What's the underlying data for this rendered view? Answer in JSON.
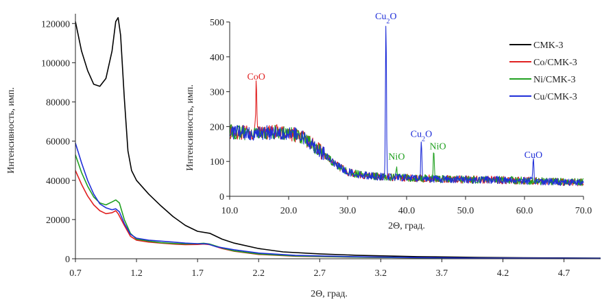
{
  "chart_data": [
    {
      "id": "main",
      "type": "line",
      "xlabel": "2Θ, град.",
      "ylabel": "Интенсивность, имп.",
      "xlim": [
        0.7,
        5.0
      ],
      "ylim": [
        0,
        125000
      ],
      "xticks": [
        "0.7",
        "1.2",
        "1.7",
        "2.2",
        "2.7",
        "3.2",
        "3.7",
        "4.2",
        "4.7"
      ],
      "yticks": [
        "0",
        "20000",
        "40000",
        "60000",
        "80000",
        "100000",
        "120000"
      ],
      "grid": false,
      "series": [
        {
          "name": "CMK-3",
          "color": "#000000",
          "points": [
            [
              0.7,
              121000
            ],
            [
              0.75,
              106000
            ],
            [
              0.8,
              96000
            ],
            [
              0.85,
              89000
            ],
            [
              0.9,
              88000
            ],
            [
              0.95,
              92000
            ],
            [
              1.0,
              106000
            ],
            [
              1.03,
              121000
            ],
            [
              1.05,
              123000
            ],
            [
              1.07,
              114000
            ],
            [
              1.1,
              82000
            ],
            [
              1.13,
              55000
            ],
            [
              1.16,
              45000
            ],
            [
              1.2,
              40000
            ],
            [
              1.3,
              33000
            ],
            [
              1.4,
              27000
            ],
            [
              1.5,
              21500
            ],
            [
              1.6,
              17000
            ],
            [
              1.7,
              14000
            ],
            [
              1.8,
              13000
            ],
            [
              1.9,
              10000
            ],
            [
              2.0,
              8000
            ],
            [
              2.2,
              5200
            ],
            [
              2.4,
              3500
            ],
            [
              2.7,
              2500
            ],
            [
              3.0,
              1800
            ],
            [
              3.5,
              1100
            ],
            [
              4.0,
              700
            ],
            [
              4.5,
              450
            ],
            [
              5.0,
              300
            ]
          ]
        },
        {
          "name": "Co/CMK-3",
          "color": "#e02020",
          "points": [
            [
              0.7,
              45000
            ],
            [
              0.75,
              38000
            ],
            [
              0.8,
              32000
            ],
            [
              0.85,
              27500
            ],
            [
              0.9,
              24500
            ],
            [
              0.95,
              23000
            ],
            [
              1.0,
              23500
            ],
            [
              1.03,
              24500
            ],
            [
              1.05,
              23000
            ],
            [
              1.1,
              17000
            ],
            [
              1.15,
              11500
            ],
            [
              1.2,
              9500
            ],
            [
              1.3,
              8500
            ],
            [
              1.4,
              8000
            ],
            [
              1.5,
              7500
            ],
            [
              1.6,
              7200
            ],
            [
              1.7,
              7300
            ],
            [
              1.75,
              7500
            ],
            [
              1.8,
              7200
            ],
            [
              1.9,
              5200
            ],
            [
              2.0,
              3800
            ],
            [
              2.2,
              2200
            ],
            [
              2.5,
              1300
            ],
            [
              3.0,
              800
            ],
            [
              3.5,
              500
            ],
            [
              4.0,
              300
            ],
            [
              5.0,
              200
            ]
          ]
        },
        {
          "name": "Ni/CMK-3",
          "color": "#20a020",
          "points": [
            [
              0.7,
              53000
            ],
            [
              0.75,
              44000
            ],
            [
              0.8,
              37000
            ],
            [
              0.85,
              31500
            ],
            [
              0.9,
              28500
            ],
            [
              0.95,
              27500
            ],
            [
              1.0,
              29000
            ],
            [
              1.03,
              30000
            ],
            [
              1.06,
              28500
            ],
            [
              1.1,
              20000
            ],
            [
              1.15,
              13000
            ],
            [
              1.2,
              10000
            ],
            [
              1.3,
              9000
            ],
            [
              1.4,
              8200
            ],
            [
              1.5,
              7800
            ],
            [
              1.6,
              7600
            ],
            [
              1.7,
              7700
            ],
            [
              1.75,
              7900
            ],
            [
              1.8,
              7500
            ],
            [
              1.9,
              5500
            ],
            [
              2.0,
              4000
            ],
            [
              2.2,
              2400
            ],
            [
              2.5,
              1400
            ],
            [
              3.0,
              800
            ],
            [
              3.5,
              500
            ],
            [
              4.0,
              300
            ],
            [
              5.0,
              200
            ]
          ]
        },
        {
          "name": "Cu/CMK-3",
          "color": "#1f2ed8",
          "points": [
            [
              0.7,
              59000
            ],
            [
              0.75,
              49000
            ],
            [
              0.8,
              40000
            ],
            [
              0.85,
              33000
            ],
            [
              0.9,
              28000
            ],
            [
              0.95,
              26000
            ],
            [
              1.0,
              25000
            ],
            [
              1.03,
              25500
            ],
            [
              1.06,
              24000
            ],
            [
              1.1,
              18000
            ],
            [
              1.15,
              12500
            ],
            [
              1.2,
              10500
            ],
            [
              1.3,
              9500
            ],
            [
              1.4,
              9000
            ],
            [
              1.5,
              8500
            ],
            [
              1.6,
              8000
            ],
            [
              1.7,
              7700
            ],
            [
              1.78,
              7600
            ],
            [
              1.85,
              6200
            ],
            [
              2.0,
              4600
            ],
            [
              2.2,
              2900
            ],
            [
              2.5,
              1700
            ],
            [
              3.0,
              1000
            ],
            [
              3.5,
              600
            ],
            [
              4.0,
              350
            ],
            [
              5.0,
              200
            ]
          ]
        }
      ]
    },
    {
      "id": "inset",
      "type": "line",
      "xlabel": "2Θ, град.",
      "ylabel": "Интенсивность, имп.",
      "xlim": [
        10.0,
        70.0
      ],
      "ylim": [
        0,
        500
      ],
      "xticks": [
        "10.0",
        "20.0",
        "30.0",
        "40.0",
        "50.0",
        "60.0",
        "70.0"
      ],
      "yticks": [
        "0",
        "100",
        "200",
        "300",
        "400",
        "500"
      ],
      "grid": false,
      "baseline": [
        [
          10,
          185
        ],
        [
          15,
          180
        ],
        [
          18,
          185
        ],
        [
          20,
          182
        ],
        [
          22,
          172
        ],
        [
          24,
          150
        ],
        [
          26,
          120
        ],
        [
          28,
          90
        ],
        [
          30,
          70
        ],
        [
          32,
          62
        ],
        [
          35,
          57
        ],
        [
          40,
          53
        ],
        [
          45,
          50
        ],
        [
          50,
          48
        ],
        [
          55,
          47
        ],
        [
          60,
          45
        ],
        [
          65,
          42
        ],
        [
          70,
          40
        ]
      ],
      "series": [
        {
          "name": "Co/CMK-3",
          "color": "#e02020",
          "peaks": [
            [
              14.5,
              325
            ]
          ]
        },
        {
          "name": "Ni/CMK-3",
          "color": "#20a020",
          "peaks": [
            [
              38.3,
              95
            ],
            [
              44.6,
              125
            ]
          ]
        },
        {
          "name": "Cu/CMK-3",
          "color": "#1f2ed8",
          "peaks": [
            [
              36.5,
              500
            ],
            [
              42.5,
              160
            ],
            [
              61.5,
              100
            ]
          ]
        }
      ],
      "annotations": [
        {
          "text": "CoO",
          "x": 14.5,
          "y": 335,
          "color": "#e02020"
        },
        {
          "text": "Cu2O",
          "x": 36.5,
          "y": 508,
          "color": "#1f2ed8"
        },
        {
          "text": "Cu2O",
          "x": 42.5,
          "y": 170,
          "color": "#1f2ed8"
        },
        {
          "text": "NiO",
          "x": 38.3,
          "y": 105,
          "color": "#20a020"
        },
        {
          "text": "NiO",
          "x": 45.3,
          "y": 135,
          "color": "#20a020"
        },
        {
          "text": "CuO",
          "x": 61.5,
          "y": 110,
          "color": "#1f2ed8"
        }
      ]
    }
  ],
  "legend": {
    "placement": "top-right",
    "items": [
      {
        "label": "CMK-3",
        "color": "#000000"
      },
      {
        "label": "Co/CMK-3",
        "color": "#e02020"
      },
      {
        "label": "Ni/CMK-3",
        "color": "#20a020"
      },
      {
        "label": "Cu/CMK-3",
        "color": "#1f2ed8"
      }
    ]
  }
}
